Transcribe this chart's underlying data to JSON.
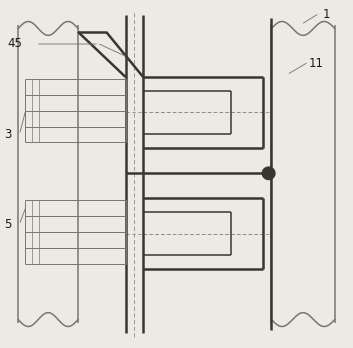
{
  "bg_color": "#ede9e3",
  "line_dark": "#3a3530",
  "line_mid": "#7a7570",
  "line_light": "#aaa8a3",
  "line_dash": "#8a8a8a",
  "label_color": "#1a1a1a",
  "figsize": [
    3.53,
    3.48
  ],
  "dpi": 100
}
